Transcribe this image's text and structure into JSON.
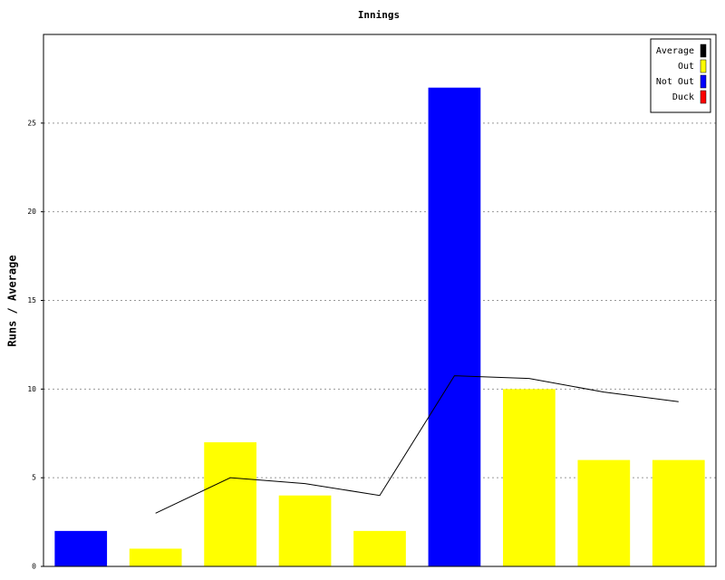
{
  "chart_data": {
    "type": "bar",
    "title": "Innings",
    "y_label": "Runs / Average",
    "categories": [
      null,
      null,
      null,
      null,
      null,
      null,
      null,
      null,
      null
    ],
    "series": [
      {
        "name": "Average",
        "type": "line",
        "color": "#000000",
        "values": [
          null,
          3,
          5,
          4.67,
          4,
          10.75,
          10.6,
          9.83,
          9.29
        ]
      },
      {
        "name": "Out",
        "type": "bar",
        "color": "#ffff00",
        "values": [
          null,
          1,
          7,
          4,
          2,
          null,
          10,
          6,
          6
        ]
      },
      {
        "name": "Not Out",
        "type": "bar",
        "color": "#0000ff",
        "values": [
          2,
          null,
          null,
          null,
          null,
          27,
          null,
          null,
          null
        ]
      },
      {
        "name": "Duck",
        "type": "bar",
        "color": "#ff0000",
        "values": [
          null,
          null,
          null,
          null,
          null,
          null,
          null,
          null,
          null
        ]
      }
    ],
    "ylim": [
      0,
      30
    ],
    "yticks": [
      0,
      5,
      10,
      15,
      20,
      25
    ],
    "grid": true,
    "legend": "top-right"
  }
}
